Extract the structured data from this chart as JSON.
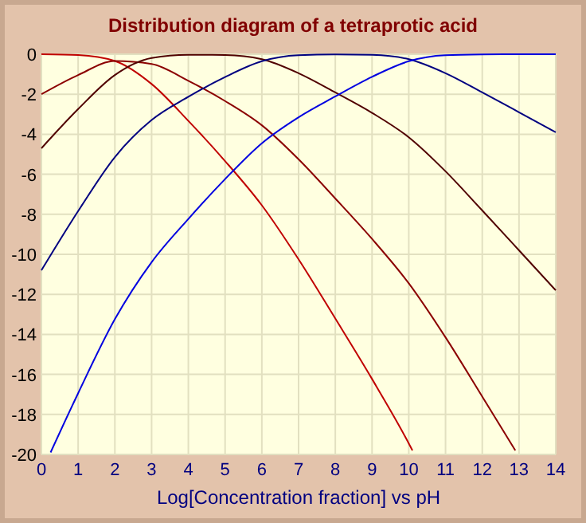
{
  "chart_data": {
    "type": "line",
    "title": "Distribution diagram of a tetraprotic acid",
    "xlabel": "Log[Concentration fraction] vs pH",
    "xlim": [
      0,
      14
    ],
    "ylim": [
      -20,
      0
    ],
    "xticks": [
      0,
      1,
      2,
      3,
      4,
      5,
      6,
      7,
      8,
      9,
      10,
      11,
      12,
      13,
      14
    ],
    "yticks": [
      -20,
      -18,
      -16,
      -14,
      -12,
      -10,
      -8,
      -6,
      -4,
      -2,
      0
    ],
    "grid": true,
    "marker": "none",
    "line_style": "solid",
    "series": [
      {
        "color": "#c00000",
        "x": [
          0,
          1,
          2,
          3,
          4,
          5,
          6,
          7,
          8,
          9,
          10,
          10.1
        ],
        "values": [
          0,
          -0.04,
          -0.34,
          -1.49,
          -3.33,
          -5.34,
          -7.55,
          -10.25,
          -13.21,
          -16.23,
          -19.45,
          -19.8
        ]
      },
      {
        "color": "#8b0000",
        "x": [
          0,
          1,
          2,
          3,
          4,
          5,
          6,
          7,
          8,
          9,
          10,
          11,
          12,
          12.9
        ],
        "values": [
          -2,
          -1.04,
          -0.34,
          -0.49,
          -1.33,
          -2.34,
          -3.55,
          -5.25,
          -7.21,
          -9.23,
          -11.45,
          -14.15,
          -17.11,
          -19.8
        ]
      },
      {
        "color": "#500000",
        "x": [
          0,
          1,
          2,
          3,
          4,
          5,
          6,
          7,
          8,
          9,
          10,
          11,
          12,
          13,
          14
        ],
        "values": [
          -4.7,
          -2.74,
          -1.04,
          -0.19,
          -0.03,
          -0.04,
          -0.25,
          -0.95,
          -1.91,
          -2.93,
          -4.15,
          -5.85,
          -7.81,
          -9.8,
          -11.8
        ]
      },
      {
        "color": "#000080",
        "x": [
          0,
          1,
          2,
          3,
          4,
          5,
          6,
          7,
          8,
          9,
          10,
          11,
          12,
          13,
          14
        ],
        "values": [
          -10.8,
          -7.84,
          -5.14,
          -3.29,
          -2.13,
          -1.14,
          -0.35,
          -0.05,
          -0.01,
          -0.03,
          -0.25,
          -0.95,
          -1.91,
          -2.9,
          -3.9
        ]
      },
      {
        "color": "#0000e0",
        "x": [
          0.25,
          1,
          2,
          3,
          4,
          5,
          6,
          7,
          8,
          9,
          10,
          11,
          12,
          13,
          14
        ],
        "values": [
          -19.9,
          -16.94,
          -13.24,
          -10.39,
          -8.23,
          -6.24,
          -4.45,
          -3.15,
          -2.11,
          -1.13,
          -0.35,
          -0.05,
          -0.01,
          0,
          0
        ]
      }
    ]
  }
}
